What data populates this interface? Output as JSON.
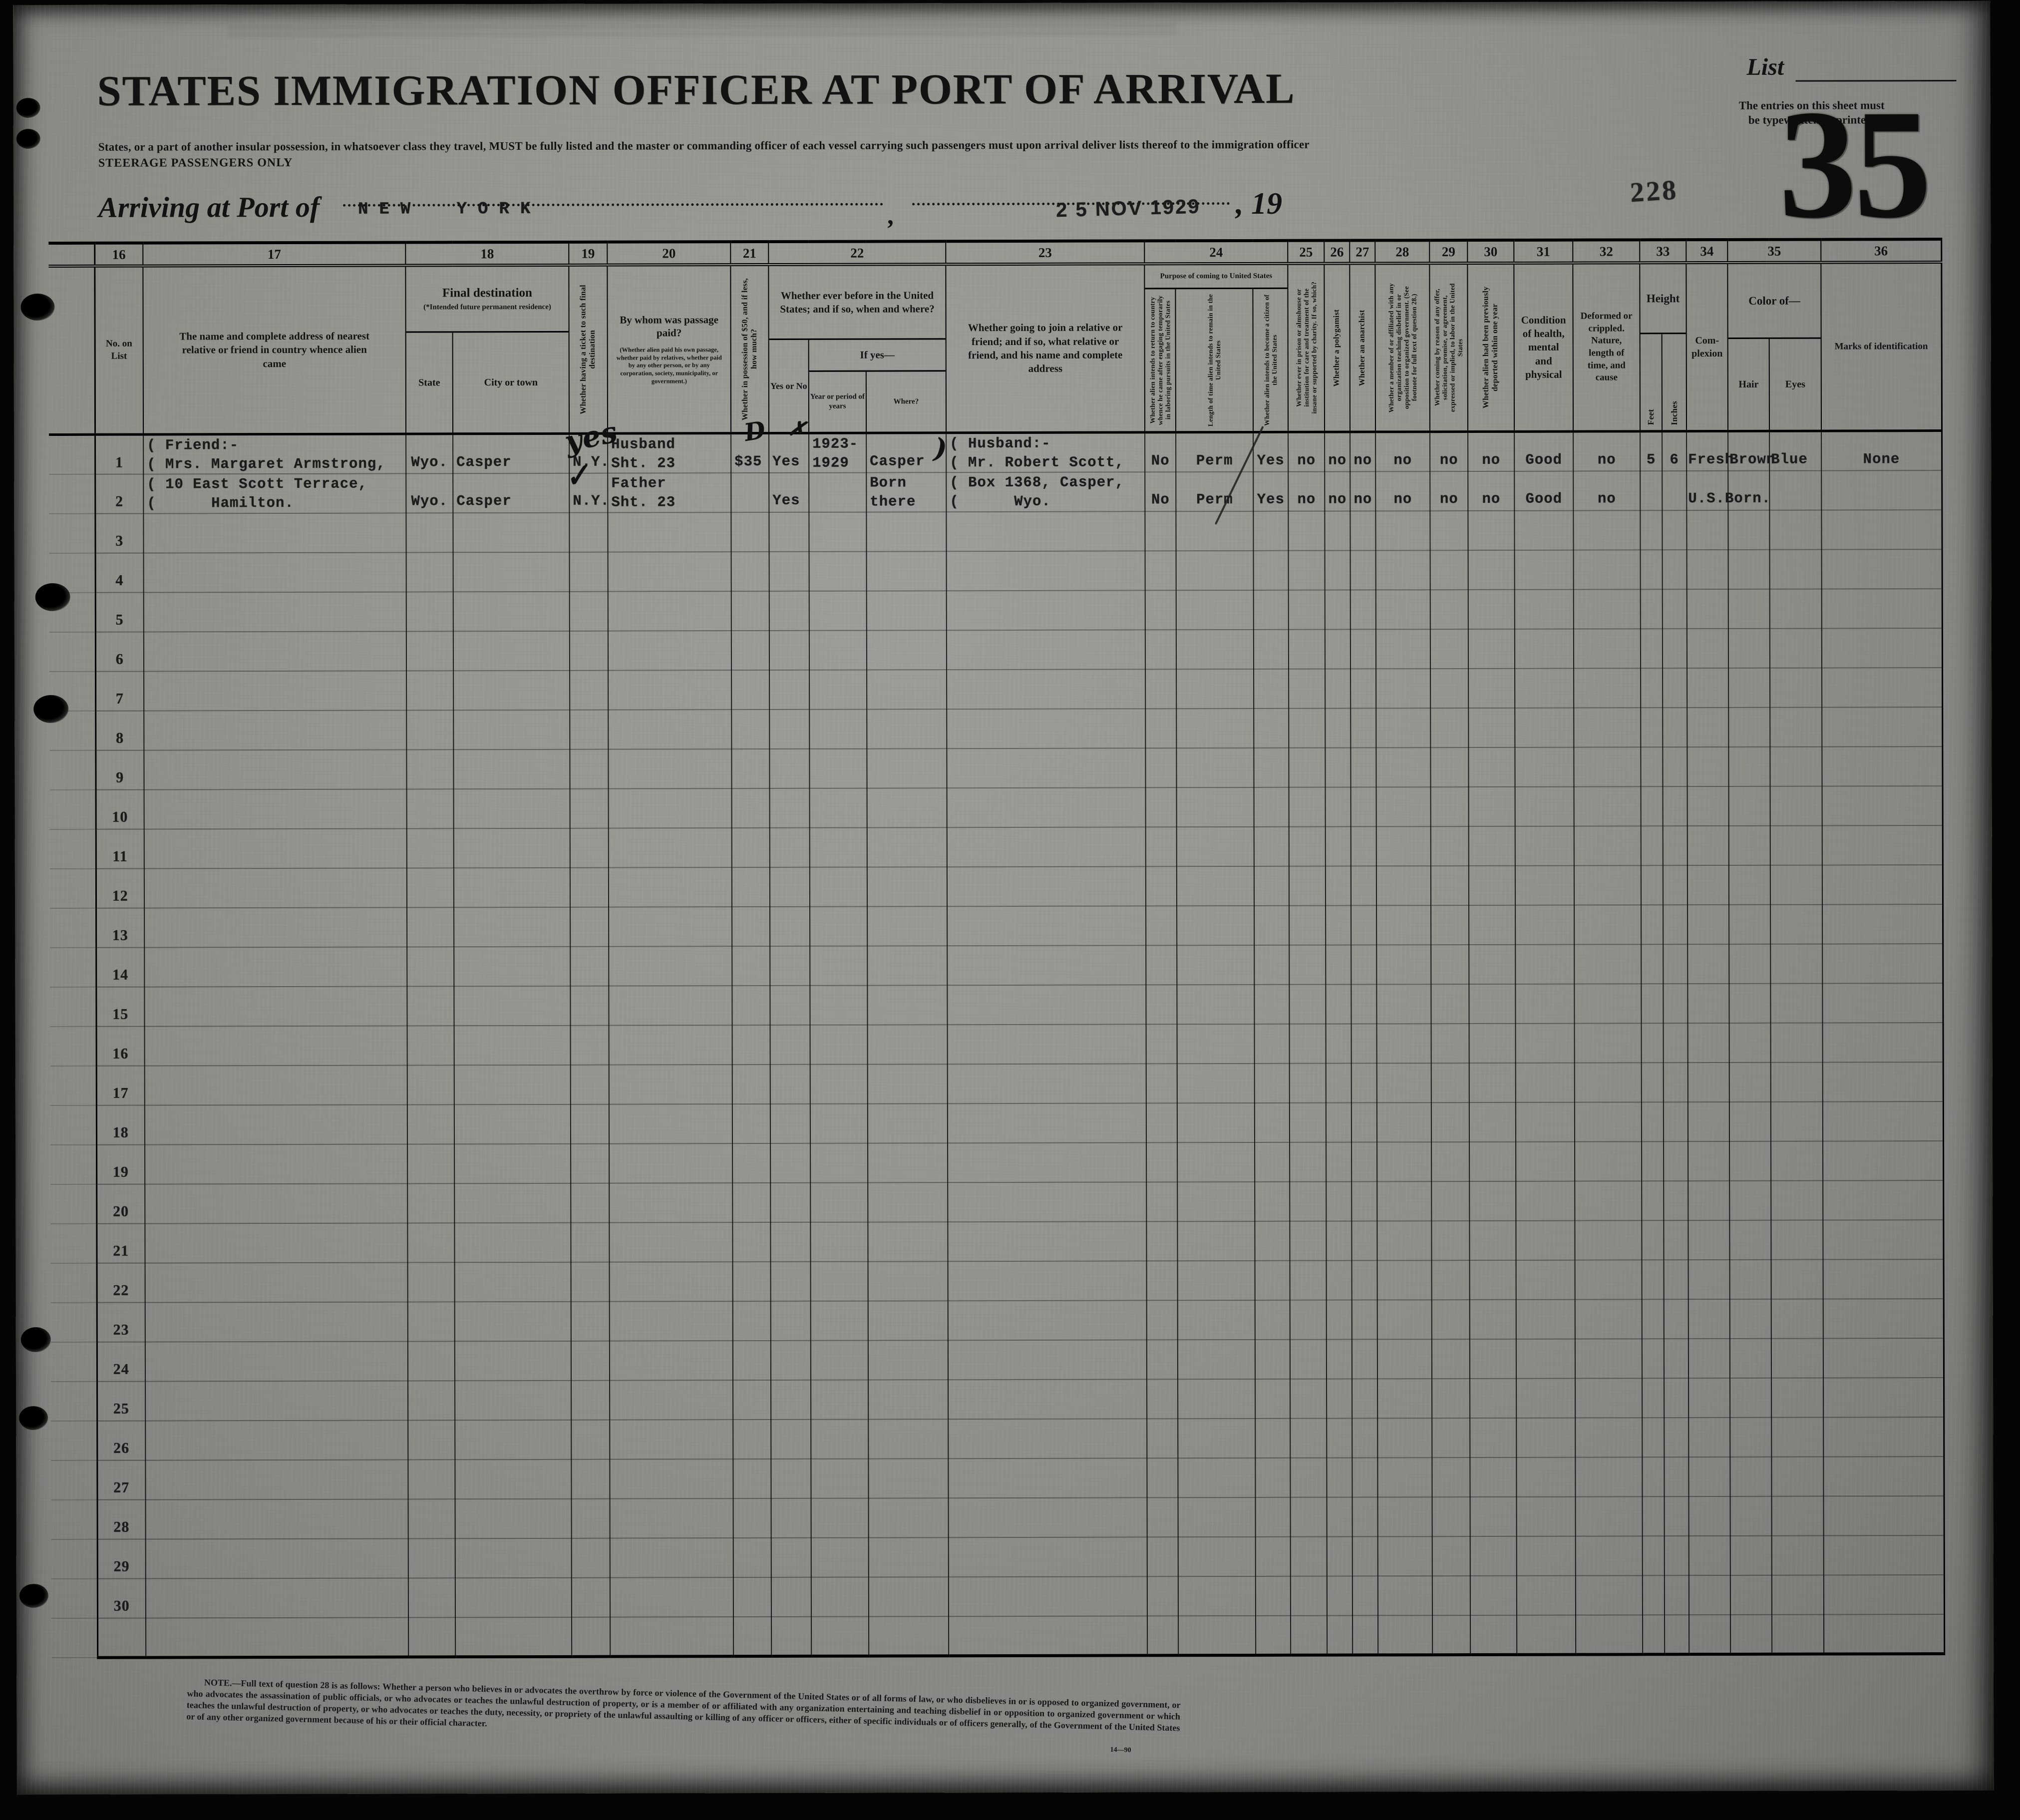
{
  "header": {
    "title": "STATES IMMIGRATION OFFICER AT PORT OF ARRIVAL",
    "subtitle": "States, or a part of another insular possession, in whatsoever class they travel, MUST be fully listed and the master or commanding officer of each vessel carrying such passengers must upon arrival deliver lists thereof to the immigration officer",
    "steerage": "STEERAGE PASSENGERS ONLY",
    "arriving_label": "Arriving at Port of",
    "port_value": "NEW YORK",
    "comma": ",",
    "date_stamp": "2 5 NOV 1929",
    "year_printed": ", 19",
    "stamp_number": "228",
    "list_label": "List",
    "entries_note_line1": "The entries on this sheet must",
    "entries_note_line2": "be typewritten or printed.",
    "sheet_number": "35"
  },
  "table": {
    "nums": [
      "16",
      "17",
      "18",
      "19",
      "20",
      "21",
      "22",
      "23",
      "24",
      "25",
      "26",
      "27",
      "28",
      "29",
      "30",
      "31",
      "32",
      "33",
      "34",
      "35",
      "36"
    ],
    "headers": {
      "no_on_list": "No. on List",
      "name": "The name and complete address of nearest relative or friend in country whence alien came",
      "final_dest": "Final destination",
      "final_dest_sub": "(*Intended future permanent residence)",
      "state": "State",
      "city": "City or town",
      "ticket": "Whether having a ticket to such final destination",
      "paid_by": "By whom was passage paid?",
      "paid_by_sub": "(Whether alien paid his own passage, whether paid by relatives, whether paid by any other person, or by any corporation, society, municipality, or government.)",
      "fifty": "Whether in possession of $50, and if less, how much?",
      "before": "Whether ever before in the United States; and if so, when and where?",
      "yes_no": "Yes or No",
      "if_yes": "If yes—",
      "year_period": "Year or period of years",
      "where": "Where?",
      "join": "Whether going to join a relative or friend; and if so, what relative or friend, and his name and complete address",
      "purpose": "Purpose of coming to United States",
      "p_return": "Whether alien intends to return to country whence he came after engaging temporarily in laboring pursuits in the United States",
      "p_length": "Length of time alien intends to remain in the United States",
      "p_citizen": "Whether alien intends to become a citizen of the United States",
      "prison": "Whether ever in prison or almshouse or institution for care and treatment of the insane or supported by charity. If so, which?",
      "polygamist": "Whether a polygamist",
      "anarchist": "Whether an anarchist",
      "org": "Whether a member of or affiliated with any organization teaching disbelief in or opposition to organized government. (See footnote for full text of question 28.)",
      "labor": "Whether coming by reason of any offer, solicitation, promise, or agreement, expressed or implied, to labor in the United States",
      "deported": "Whether alien had been previously deported within one year",
      "health": "Condition of health, mental and physical",
      "deformed": "Deformed or crippled. Nature, length of time, and cause",
      "height": "Height",
      "feet": "Feet",
      "inches": "Inches",
      "complexion": "Com- plexion",
      "color_of": "Color of—",
      "hair": "Hair",
      "eyes": "Eyes",
      "marks": "Marks of identification"
    },
    "rows": [
      {
        "no": "1",
        "name": [
          "( Friend:-",
          "( Mrs. Margaret Armstrong,"
        ],
        "state": "Wyo.",
        "city": "Casper",
        "ticket": "N.Y.",
        "ticket_hw": "yes",
        "paid_by": [
          "Husband",
          "Sht. 23"
        ],
        "money": "$35",
        "money_hw": "D",
        "before_yes": "Yes",
        "before_yes_hw": "✗",
        "before_year": [
          "1923-",
          "1929"
        ],
        "before_where": "Casper",
        "before_where_hw": ")",
        "join": [
          "( Husband:-",
          "( Mr. Robert Scott,"
        ],
        "p_return": "No",
        "p_length": "Perm",
        "p_citizen": "Yes",
        "prison": "no",
        "polygamist": "no",
        "anarchist": "no",
        "org": "no",
        "labor": "no",
        "deported": "no",
        "health": "Good",
        "deformed": "no",
        "feet": "5",
        "inches": "6",
        "complexion": "Fresh",
        "hair": "Brown",
        "eyes": "Blue",
        "marks": "None"
      },
      {
        "no": "2",
        "name": [
          "( 10 East Scott Terrace,",
          "(      Hamilton."
        ],
        "state": "Wyo.",
        "city": "Casper",
        "ticket": "N.Y.",
        "ticket_hw": "✓",
        "paid_by": [
          "Father",
          "Sht. 23"
        ],
        "before_yes": "Yes",
        "before_where": [
          "Born",
          "there"
        ],
        "join": [
          "( Box 1368, Casper,",
          "(      Wyo."
        ],
        "p_return": "No",
        "p_length": "Perm",
        "p_citizen": "Yes",
        "prison": "no",
        "polygamist": "no",
        "anarchist": "no",
        "org": "no",
        "labor": "no",
        "deported": "no",
        "health": "Good",
        "deformed": "no",
        "complexion": "U.S.Born."
      },
      {
        "no": "3"
      },
      {
        "no": "4"
      },
      {
        "no": "5"
      },
      {
        "no": "6"
      },
      {
        "no": "7"
      },
      {
        "no": "8"
      },
      {
        "no": "9"
      },
      {
        "no": "10"
      },
      {
        "no": "11"
      },
      {
        "no": "12"
      },
      {
        "no": "13"
      },
      {
        "no": "14"
      },
      {
        "no": "15"
      },
      {
        "no": "16"
      },
      {
        "no": "17"
      },
      {
        "no": "18"
      },
      {
        "no": "19"
      },
      {
        "no": "20"
      },
      {
        "no": "21"
      },
      {
        "no": "22"
      },
      {
        "no": "23"
      },
      {
        "no": "24"
      },
      {
        "no": "25"
      },
      {
        "no": "26"
      },
      {
        "no": "27"
      },
      {
        "no": "28"
      },
      {
        "no": "29"
      },
      {
        "no": "30"
      }
    ]
  },
  "footnote": "NOTE.—Full text of question 28 is as follows:  Whether a person who believes in or advocates the overthrow by force or violence of the Government of the United States or of all forms of law, or who disbelieves in or is opposed to organized government, or who advocates the assassination of public officials, or who advocates or teaches the unlawful destruction of property, or is a member of or affiliated with any organization entertaining and teaching disbelief in or opposition to organized government or which teaches the unlawful destruction of property, or who advocates or teaches the duty, necessity, or propriety of the unlawful assaulting or killing of any officer or officers, either of specific individuals or of officers generally, of the Government of the United States or of any other organized government because of his or their official character.",
  "form_code": "14—90"
}
